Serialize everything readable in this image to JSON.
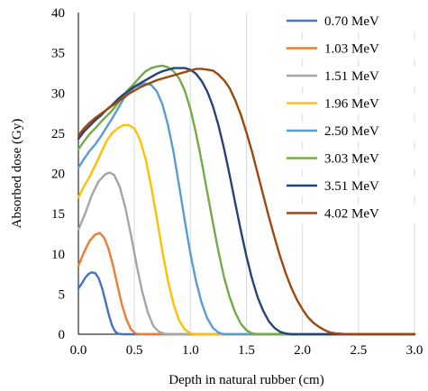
{
  "chart_data": {
    "type": "line",
    "title": "",
    "xlabel": "Depth in natural rubber (cm)",
    "ylabel": "Absorbed dose (Gy)",
    "xlim": [
      0,
      3.0
    ],
    "ylim": [
      0,
      40
    ],
    "x_ticks": [
      "0.0",
      "0.5",
      "1.0",
      "1.5",
      "2.0",
      "2.5",
      "3.0"
    ],
    "y_ticks": [
      "0",
      "5",
      "10",
      "15",
      "20",
      "25",
      "30",
      "35",
      "40"
    ],
    "grid": "vertical gridlines",
    "legend_position": "right",
    "series": [
      {
        "name": "0.70 MeV",
        "color": "#4472C4",
        "points": [
          [
            0,
            5.7
          ],
          [
            0.03,
            6.3
          ],
          [
            0.06,
            7.0
          ],
          [
            0.09,
            7.5
          ],
          [
            0.12,
            7.7
          ],
          [
            0.15,
            7.6
          ],
          [
            0.18,
            7.0
          ],
          [
            0.21,
            5.8
          ],
          [
            0.24,
            4.2
          ],
          [
            0.27,
            2.5
          ],
          [
            0.3,
            1.1
          ],
          [
            0.33,
            0.3
          ],
          [
            0.36,
            0.05
          ],
          [
            0.4,
            0
          ],
          [
            3.0,
            0
          ]
        ]
      },
      {
        "name": "1.03 MeV",
        "color": "#ED7D31",
        "points": [
          [
            0,
            8.5
          ],
          [
            0.05,
            10.2
          ],
          [
            0.1,
            11.6
          ],
          [
            0.15,
            12.4
          ],
          [
            0.19,
            12.6
          ],
          [
            0.23,
            12.0
          ],
          [
            0.27,
            10.6
          ],
          [
            0.31,
            8.5
          ],
          [
            0.35,
            6.0
          ],
          [
            0.39,
            3.6
          ],
          [
            0.43,
            1.8
          ],
          [
            0.47,
            0.6
          ],
          [
            0.51,
            0.1
          ],
          [
            0.55,
            0
          ],
          [
            3.0,
            0
          ]
        ]
      },
      {
        "name": "1.51 MeV",
        "color": "#A5A5A5",
        "points": [
          [
            0,
            13.0
          ],
          [
            0.06,
            15.0
          ],
          [
            0.12,
            17.3
          ],
          [
            0.18,
            19.0
          ],
          [
            0.24,
            19.9
          ],
          [
            0.28,
            20.1
          ],
          [
            0.32,
            19.8
          ],
          [
            0.37,
            18.3
          ],
          [
            0.42,
            15.7
          ],
          [
            0.47,
            12.3
          ],
          [
            0.52,
            8.6
          ],
          [
            0.57,
            5.3
          ],
          [
            0.62,
            2.7
          ],
          [
            0.67,
            1.0
          ],
          [
            0.72,
            0.3
          ],
          [
            0.77,
            0.05
          ],
          [
            0.8,
            0
          ],
          [
            3.0,
            0
          ]
        ]
      },
      {
        "name": "1.96 MeV",
        "color": "#FFC000",
        "points": [
          [
            0,
            17.0
          ],
          [
            0.05,
            18.4
          ],
          [
            0.1,
            19.6
          ],
          [
            0.15,
            21.0
          ],
          [
            0.2,
            22.5
          ],
          [
            0.25,
            24.0
          ],
          [
            0.3,
            25.0
          ],
          [
            0.35,
            25.6
          ],
          [
            0.4,
            26.0
          ],
          [
            0.45,
            26.0
          ],
          [
            0.5,
            25.6
          ],
          [
            0.55,
            24.2
          ],
          [
            0.6,
            21.8
          ],
          [
            0.65,
            18.4
          ],
          [
            0.7,
            14.4
          ],
          [
            0.75,
            10.3
          ],
          [
            0.8,
            6.6
          ],
          [
            0.85,
            3.7
          ],
          [
            0.9,
            1.7
          ],
          [
            0.95,
            0.6
          ],
          [
            1.0,
            0.1
          ],
          [
            1.05,
            0
          ],
          [
            3.0,
            0
          ]
        ]
      },
      {
        "name": "2.50 MeV",
        "color": "#5B9BD5",
        "points": [
          [
            0,
            20.7
          ],
          [
            0.05,
            21.8
          ],
          [
            0.1,
            22.8
          ],
          [
            0.15,
            23.6
          ],
          [
            0.2,
            24.6
          ],
          [
            0.25,
            25.7
          ],
          [
            0.3,
            26.8
          ],
          [
            0.35,
            28.0
          ],
          [
            0.4,
            29.2
          ],
          [
            0.45,
            30.1
          ],
          [
            0.5,
            30.7
          ],
          [
            0.55,
            31.0
          ],
          [
            0.6,
            31.2
          ],
          [
            0.65,
            31.0
          ],
          [
            0.7,
            30.2
          ],
          [
            0.75,
            28.6
          ],
          [
            0.8,
            26.0
          ],
          [
            0.85,
            22.6
          ],
          [
            0.9,
            18.4
          ],
          [
            0.95,
            14.1
          ],
          [
            1.0,
            10.0
          ],
          [
            1.05,
            6.6
          ],
          [
            1.1,
            3.9
          ],
          [
            1.15,
            2.0
          ],
          [
            1.2,
            0.8
          ],
          [
            1.25,
            0.2
          ],
          [
            1.3,
            0
          ],
          [
            3.0,
            0
          ]
        ]
      },
      {
        "name": "3.03 MeV",
        "color": "#70AD47",
        "points": [
          [
            0,
            23.0
          ],
          [
            0.05,
            24.0
          ],
          [
            0.1,
            24.9
          ],
          [
            0.15,
            25.6
          ],
          [
            0.2,
            26.4
          ],
          [
            0.25,
            27.1
          ],
          [
            0.3,
            27.8
          ],
          [
            0.35,
            28.7
          ],
          [
            0.4,
            29.6
          ],
          [
            0.45,
            30.5
          ],
          [
            0.5,
            31.2
          ],
          [
            0.55,
            32.0
          ],
          [
            0.6,
            32.7
          ],
          [
            0.65,
            33.1
          ],
          [
            0.7,
            33.3
          ],
          [
            0.75,
            33.4
          ],
          [
            0.8,
            33.2
          ],
          [
            0.85,
            32.7
          ],
          [
            0.9,
            31.8
          ],
          [
            0.95,
            30.3
          ],
          [
            1.0,
            28.0
          ],
          [
            1.05,
            25.0
          ],
          [
            1.1,
            21.5
          ],
          [
            1.15,
            17.7
          ],
          [
            1.2,
            13.9
          ],
          [
            1.25,
            10.3
          ],
          [
            1.3,
            7.1
          ],
          [
            1.35,
            4.6
          ],
          [
            1.4,
            2.7
          ],
          [
            1.45,
            1.3
          ],
          [
            1.5,
            0.5
          ],
          [
            1.55,
            0.1
          ],
          [
            1.6,
            0
          ],
          [
            3.0,
            0
          ]
        ]
      },
      {
        "name": "3.51 MeV",
        "color": "#264478",
        "points": [
          [
            0,
            24.3
          ],
          [
            0.05,
            25.2
          ],
          [
            0.1,
            25.9
          ],
          [
            0.15,
            26.6
          ],
          [
            0.2,
            27.2
          ],
          [
            0.25,
            27.9
          ],
          [
            0.3,
            28.5
          ],
          [
            0.35,
            29.2
          ],
          [
            0.4,
            29.8
          ],
          [
            0.45,
            30.3
          ],
          [
            0.5,
            30.8
          ],
          [
            0.55,
            31.2
          ],
          [
            0.6,
            31.6
          ],
          [
            0.65,
            32.0
          ],
          [
            0.7,
            32.4
          ],
          [
            0.75,
            32.7
          ],
          [
            0.8,
            32.9
          ],
          [
            0.85,
            33.1
          ],
          [
            0.9,
            33.1
          ],
          [
            0.95,
            33.1
          ],
          [
            1.0,
            32.9
          ],
          [
            1.05,
            32.4
          ],
          [
            1.1,
            31.5
          ],
          [
            1.15,
            30.2
          ],
          [
            1.2,
            28.4
          ],
          [
            1.25,
            26.0
          ],
          [
            1.3,
            23.1
          ],
          [
            1.35,
            19.8
          ],
          [
            1.4,
            16.3
          ],
          [
            1.45,
            12.9
          ],
          [
            1.5,
            9.7
          ],
          [
            1.55,
            6.9
          ],
          [
            1.6,
            4.6
          ],
          [
            1.65,
            2.9
          ],
          [
            1.7,
            1.6
          ],
          [
            1.75,
            0.8
          ],
          [
            1.8,
            0.3
          ],
          [
            1.85,
            0.1
          ],
          [
            1.9,
            0
          ],
          [
            3.0,
            0
          ]
        ]
      },
      {
        "name": "4.02 MeV",
        "color": "#9E480E",
        "points": [
          [
            0,
            24.7
          ],
          [
            0.05,
            25.6
          ],
          [
            0.1,
            26.3
          ],
          [
            0.15,
            26.9
          ],
          [
            0.2,
            27.4
          ],
          [
            0.25,
            27.9
          ],
          [
            0.3,
            28.4
          ],
          [
            0.35,
            28.9
          ],
          [
            0.4,
            29.4
          ],
          [
            0.45,
            29.9
          ],
          [
            0.5,
            30.3
          ],
          [
            0.55,
            30.7
          ],
          [
            0.6,
            31.0
          ],
          [
            0.65,
            31.3
          ],
          [
            0.7,
            31.6
          ],
          [
            0.75,
            31.8
          ],
          [
            0.8,
            32.0
          ],
          [
            0.85,
            32.2
          ],
          [
            0.9,
            32.4
          ],
          [
            0.95,
            32.6
          ],
          [
            1.0,
            32.8
          ],
          [
            1.05,
            33.0
          ],
          [
            1.1,
            33.0
          ],
          [
            1.15,
            32.9
          ],
          [
            1.2,
            32.8
          ],
          [
            1.25,
            32.3
          ],
          [
            1.3,
            31.6
          ],
          [
            1.35,
            30.6
          ],
          [
            1.4,
            29.1
          ],
          [
            1.45,
            27.3
          ],
          [
            1.5,
            25.1
          ],
          [
            1.55,
            22.7
          ],
          [
            1.6,
            20.0
          ],
          [
            1.65,
            17.3
          ],
          [
            1.7,
            14.6
          ],
          [
            1.75,
            12.1
          ],
          [
            1.8,
            9.7
          ],
          [
            1.85,
            7.6
          ],
          [
            1.9,
            5.8
          ],
          [
            1.95,
            4.3
          ],
          [
            2.0,
            3.1
          ],
          [
            2.05,
            2.1
          ],
          [
            2.1,
            1.4
          ],
          [
            2.15,
            0.9
          ],
          [
            2.2,
            0.5
          ],
          [
            2.25,
            0.2
          ],
          [
            2.3,
            0.1
          ],
          [
            2.4,
            0
          ],
          [
            3.0,
            0
          ]
        ]
      }
    ]
  }
}
